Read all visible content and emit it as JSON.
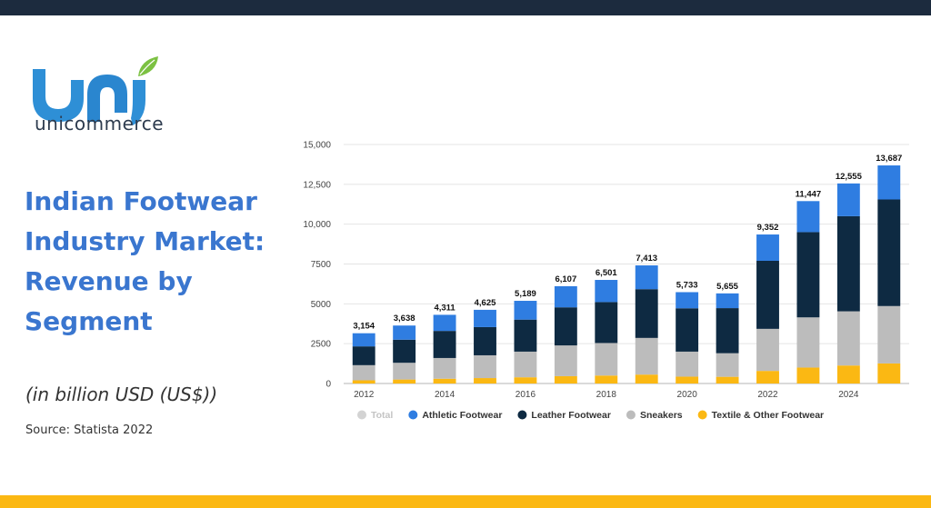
{
  "brand": {
    "name": "unicommerce",
    "colors": {
      "logo_blue": "#2e8fd6",
      "logo_leaf": "#7cc142",
      "title_blue": "#3a76cf",
      "top_bar": "#1c2b3e",
      "bottom_bar": "#fbb813"
    }
  },
  "slide": {
    "title": "Indian Footwear Industry Market: Revenue by Segment",
    "unit": "(in billion USD (US$))",
    "source": "Source: Statista 2022"
  },
  "chart_data": {
    "type": "bar",
    "stacked": true,
    "x": [
      2012,
      2013,
      2014,
      2015,
      2016,
      2017,
      2018,
      2019,
      2020,
      2021,
      2022,
      2023,
      2024,
      2025
    ],
    "x_tick_labels": [
      "2012",
      "2014",
      "2016",
      "2018",
      "2020",
      "2022",
      "2024"
    ],
    "totals": [
      3154,
      3638,
      4311,
      4625,
      5189,
      6107,
      6501,
      7413,
      5733,
      5655,
      9352,
      11447,
      12555,
      13687
    ],
    "total_labels": [
      "3,154",
      "3,638",
      "4,311",
      "4,625",
      "5,189",
      "6,107",
      "6,501",
      "7,413",
      "5,733",
      "5,655",
      "9,352",
      "11,447",
      "12,555",
      "13,687"
    ],
    "series": [
      {
        "name": "Textile & Other Footwear",
        "color": "#fbb813",
        "values": [
          200,
          250,
          300,
          340,
          390,
          460,
          500,
          560,
          430,
          420,
          790,
          1000,
          1130,
          1260
        ]
      },
      {
        "name": "Sneakers",
        "color": "#bcbcbc",
        "values": [
          950,
          1050,
          1300,
          1430,
          1610,
          1930,
          2040,
          2300,
          1570,
          1480,
          2640,
          3150,
          3400,
          3600
        ]
      },
      {
        "name": "Leather Footwear",
        "color": "#0e2a42",
        "values": [
          1180,
          1450,
          1700,
          1770,
          2010,
          2390,
          2570,
          3060,
          2720,
          2830,
          4270,
          5350,
          5970,
          6690
        ]
      },
      {
        "name": "Athletic Footwear",
        "color": "#2f7de1",
        "values": [
          824,
          888,
          1011,
          1085,
          1179,
          1327,
          1391,
          1493,
          1013,
          925,
          1652,
          1947,
          2055,
          2137
        ]
      }
    ],
    "legend": [
      {
        "name": "Total",
        "color": "#d3d3d3",
        "inactive": true
      },
      {
        "name": "Athletic Footwear",
        "color": "#2f7de1"
      },
      {
        "name": "Leather Footwear",
        "color": "#0e2a42"
      },
      {
        "name": "Sneakers",
        "color": "#bcbcbc"
      },
      {
        "name": "Textile & Other Footwear",
        "color": "#fbb813"
      }
    ],
    "y_ticks": [
      0,
      2500,
      5000,
      7500,
      10000,
      12500,
      15000
    ],
    "y_tick_labels": [
      "0",
      "2500",
      "5000",
      "7500",
      "10,000",
      "12,500",
      "15,000"
    ],
    "ylim": [
      0,
      15000
    ],
    "grid": true,
    "legend_position": "bottom"
  }
}
